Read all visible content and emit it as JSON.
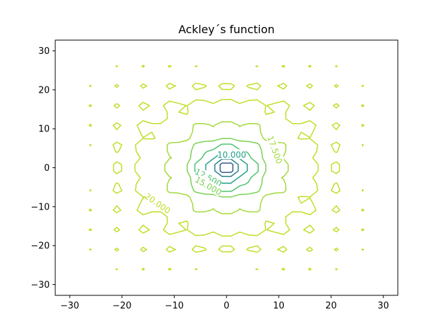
{
  "chart_data": {
    "type": "contour",
    "title": "Ackley´s function",
    "xlabel": "",
    "ylabel": "",
    "xlim": [
      -32.768,
      32.768
    ],
    "ylim": [
      -32.768,
      32.768
    ],
    "xticks": [
      -30,
      -20,
      -10,
      0,
      10,
      20,
      30
    ],
    "yticks": [
      -30,
      -20,
      -10,
      0,
      10,
      20,
      30
    ],
    "xtick_labels": [
      "−30",
      "−20",
      "−10",
      "0",
      "10",
      "20",
      "30"
    ],
    "ytick_labels": [
      "−30",
      "−20",
      "−10",
      "0",
      "10",
      "20",
      "30"
    ],
    "grid": false,
    "function": "ackley",
    "levels": [
      2.5,
      5.0,
      7.5,
      10.0,
      12.5,
      15.0,
      17.5,
      20.0
    ],
    "level_colors": [
      "#46327e",
      "#365c8d",
      "#277f8e",
      "#1fa187",
      "#4ac16d",
      "#7ad151",
      "#a0da39",
      "#bddf26"
    ],
    "contour_labels": [
      {
        "text": "10.000",
        "level": 10.0
      },
      {
        "text": "12.500",
        "level": 12.5
      },
      {
        "text": "15.000",
        "level": 15.0
      },
      {
        "text": "17.500",
        "level": 17.5
      },
      {
        "text": "20.000",
        "level": 20.0
      }
    ]
  }
}
